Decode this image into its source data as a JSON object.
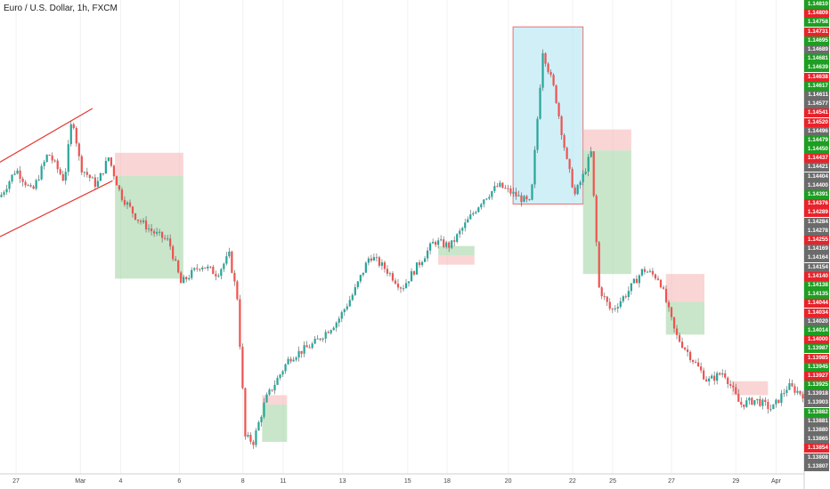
{
  "title": "Euro / U.S. Dollar, 1h, FXCM",
  "colors": {
    "up": "#26a69a",
    "down": "#ef5350",
    "long_zone": "#a5d6a7",
    "short_zone": "#f7b9b9",
    "blue_zone": "#b3e5f2"
  },
  "chart_data": {
    "type": "candlestick",
    "title": "Euro / U.S. Dollar, 1h, FXCM",
    "ylim": [
      1.13807,
      1.1481
    ],
    "y_tick_labels": [
      "1.14810",
      "1.14809",
      "1.14758",
      "1.14731",
      "1.14695",
      "1.14689",
      "1.14681",
      "1.14639",
      "1.14638",
      "1.14617",
      "1.14611",
      "1.14577",
      "1.14541",
      "1.14520",
      "1.14496",
      "1.14479",
      "1.14450",
      "1.14437",
      "1.14421",
      "1.14404",
      "1.14400",
      "1.14391",
      "1.14376",
      "1.14289",
      "1.14284",
      "1.14278",
      "1.14255",
      "1.14169",
      "1.14164",
      "1.14154",
      "1.14140",
      "1.14138",
      "1.14135",
      "1.14044",
      "1.14034",
      "1.14020",
      "1.14014",
      "1.14000",
      "1.13987",
      "1.13985",
      "1.13945",
      "1.13927",
      "1.13925",
      "1.13918",
      "1.13903",
      "1.13882",
      "1.13881",
      "1.13880",
      "1.13865",
      "1.13854",
      "1.13808",
      "1.13807"
    ],
    "y_tick_colors": [
      "g",
      "r",
      "g",
      "r",
      "g",
      "gr",
      "g",
      "g",
      "r",
      "g",
      "gr",
      "gr",
      "r",
      "r",
      "gr",
      "g",
      "g",
      "r",
      "gr",
      "gr",
      "gr",
      "g",
      "r",
      "r",
      "gr",
      "gr",
      "r",
      "gr",
      "gr",
      "gr",
      "r",
      "g",
      "g",
      "r",
      "r",
      "gr",
      "g",
      "r",
      "g",
      "r",
      "g",
      "r",
      "g",
      "gr",
      "gr",
      "g",
      "gr",
      "gr",
      "gr",
      "r",
      "gr",
      "gr"
    ],
    "x_tick_labels": [
      "27",
      "Mar",
      "4",
      "6",
      "8",
      "11",
      "13",
      "15",
      "18",
      "20",
      "22",
      "25",
      "27",
      "29",
      "Apr"
    ],
    "x_tick_fraction": [
      0.02,
      0.1,
      0.15,
      0.223,
      0.302,
      0.352,
      0.426,
      0.507,
      0.556,
      0.632,
      0.712,
      0.762,
      0.835,
      0.915,
      0.965
    ],
    "price_path": [
      [
        0.0,
        1.14395
      ],
      [
        0.02,
        1.14455
      ],
      [
        0.04,
        1.14405
      ],
      [
        0.06,
        1.1449
      ],
      [
        0.08,
        1.1443
      ],
      [
        0.09,
        1.1457
      ],
      [
        0.1,
        1.1446
      ],
      [
        0.12,
        1.1442
      ],
      [
        0.135,
        1.1448
      ],
      [
        0.15,
        1.144
      ],
      [
        0.17,
        1.1435
      ],
      [
        0.19,
        1.1432
      ],
      [
        0.21,
        1.143
      ],
      [
        0.225,
        1.1421
      ],
      [
        0.25,
        1.1425
      ],
      [
        0.27,
        1.1423
      ],
      [
        0.285,
        1.1427
      ],
      [
        0.295,
        1.1418
      ],
      [
        0.305,
        1.1388
      ],
      [
        0.315,
        1.1387
      ],
      [
        0.33,
        1.1396
      ],
      [
        0.36,
        1.1405
      ],
      [
        0.39,
        1.1408
      ],
      [
        0.42,
        1.1413
      ],
      [
        0.44,
        1.1419
      ],
      [
        0.46,
        1.1427
      ],
      [
        0.48,
        1.1424
      ],
      [
        0.5,
        1.142
      ],
      [
        0.52,
        1.1425
      ],
      [
        0.54,
        1.143
      ],
      [
        0.56,
        1.1429
      ],
      [
        0.58,
        1.1434
      ],
      [
        0.6,
        1.1439
      ],
      [
        0.62,
        1.1442
      ],
      [
        0.64,
        1.144
      ],
      [
        0.66,
        1.1438
      ],
      [
        0.675,
        1.1471
      ],
      [
        0.69,
        1.1462
      ],
      [
        0.705,
        1.1447
      ],
      [
        0.715,
        1.144
      ],
      [
        0.725,
        1.1444
      ],
      [
        0.735,
        1.1449
      ],
      [
        0.745,
        1.142
      ],
      [
        0.76,
        1.1415
      ],
      [
        0.78,
        1.1419
      ],
      [
        0.8,
        1.1424
      ],
      [
        0.82,
        1.1422
      ],
      [
        0.84,
        1.141
      ],
      [
        0.86,
        1.1405
      ],
      [
        0.88,
        1.14
      ],
      [
        0.9,
        1.1402
      ],
      [
        0.92,
        1.1395
      ],
      [
        0.94,
        1.1396
      ],
      [
        0.96,
        1.1394
      ],
      [
        0.98,
        1.1399
      ],
      [
        1.0,
        1.1397
      ]
    ],
    "zones": [
      {
        "kind": "short",
        "x0": 0.143,
        "x1": 0.228,
        "y0": 1.1449,
        "y1": 1.1444
      },
      {
        "kind": "long",
        "x0": 0.143,
        "x1": 0.228,
        "y0": 1.1444,
        "y1": 1.1422
      },
      {
        "kind": "short",
        "x0": 0.326,
        "x1": 0.357,
        "y0": 1.1397,
        "y1": 1.1395
      },
      {
        "kind": "long",
        "x0": 0.326,
        "x1": 0.357,
        "y0": 1.1395,
        "y1": 1.1387
      },
      {
        "kind": "short",
        "x0": 0.545,
        "x1": 0.59,
        "y0": 1.1427,
        "y1": 1.1425
      },
      {
        "kind": "long",
        "x0": 0.545,
        "x1": 0.59,
        "y0": 1.1429,
        "y1": 1.1427
      },
      {
        "kind": "blue",
        "x0": 0.638,
        "x1": 0.725,
        "y0": 1.1476,
        "y1": 1.1438
      },
      {
        "kind": "short",
        "x0": 0.725,
        "x1": 0.785,
        "y0": 1.1454,
        "y1": 1.14495
      },
      {
        "kind": "long",
        "x0": 0.725,
        "x1": 0.785,
        "y0": 1.14495,
        "y1": 1.1423
      },
      {
        "kind": "short",
        "x0": 0.828,
        "x1": 0.876,
        "y0": 1.1423,
        "y1": 1.1417
      },
      {
        "kind": "long",
        "x0": 0.828,
        "x1": 0.876,
        "y0": 1.1417,
        "y1": 1.141
      },
      {
        "kind": "short",
        "x0": 0.91,
        "x1": 0.955,
        "y0": 1.14,
        "y1": 1.1397
      }
    ],
    "trend_lines": [
      {
        "x0": 0.0,
        "y0": 1.1447,
        "x1": 0.115,
        "y1": 1.14585
      },
      {
        "x0": 0.0,
        "y0": 1.1431,
        "x1": 0.14,
        "y1": 1.1443
      }
    ]
  }
}
